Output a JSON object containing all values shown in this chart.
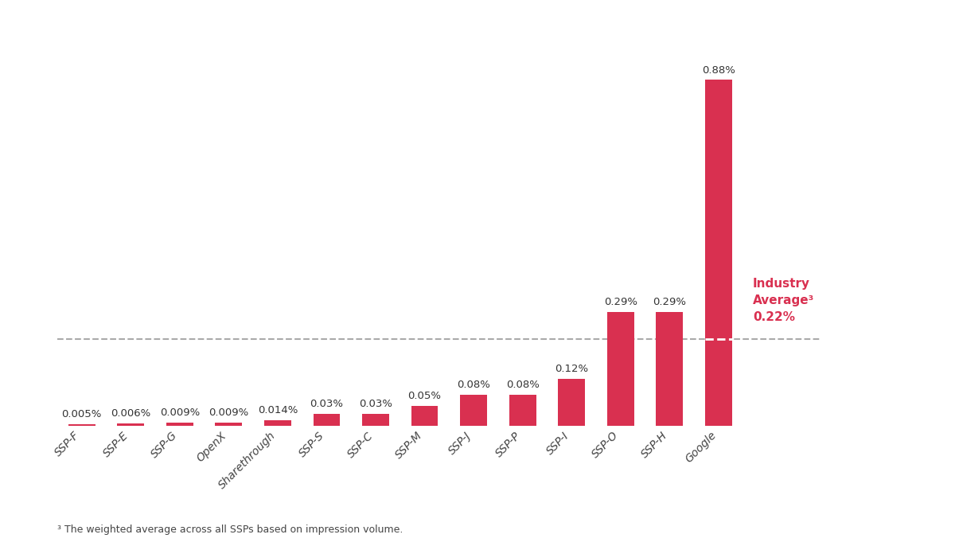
{
  "categories": [
    "SSP-F",
    "SSP-E",
    "SSP-G",
    "OpenX",
    "Sharethrough",
    "SSP-S",
    "SSP-C",
    "SSP-M",
    "SSP-J",
    "SSP-P",
    "SSP-I",
    "SSP-O",
    "SSP-H",
    "Google"
  ],
  "values": [
    0.005,
    0.006,
    0.009,
    0.009,
    0.014,
    0.03,
    0.03,
    0.05,
    0.08,
    0.08,
    0.12,
    0.29,
    0.29,
    0.88
  ],
  "labels": [
    "0.005%",
    "0.006%",
    "0.009%",
    "0.009%",
    "0.014%",
    "0.03%",
    "0.03%",
    "0.05%",
    "0.08%",
    "0.08%",
    "0.12%",
    "0.29%",
    "0.29%",
    "0.88%"
  ],
  "bar_color": "#D93050",
  "industry_average": 0.22,
  "industry_avg_label": "Industry\nAverage³\n0.22%",
  "dashed_line_color": "#aaaaaa",
  "dashed_line_color_on_bar": "#ffffff",
  "background_color": "#ffffff",
  "footnote": "³ The weighted average across all SSPs based on impression volume.",
  "ylim": [
    0,
    1.0
  ],
  "label_fontsize": 9.5,
  "tick_fontsize": 10,
  "industry_label_fontsize": 11,
  "footnote_fontsize": 9,
  "bar_width": 0.55
}
